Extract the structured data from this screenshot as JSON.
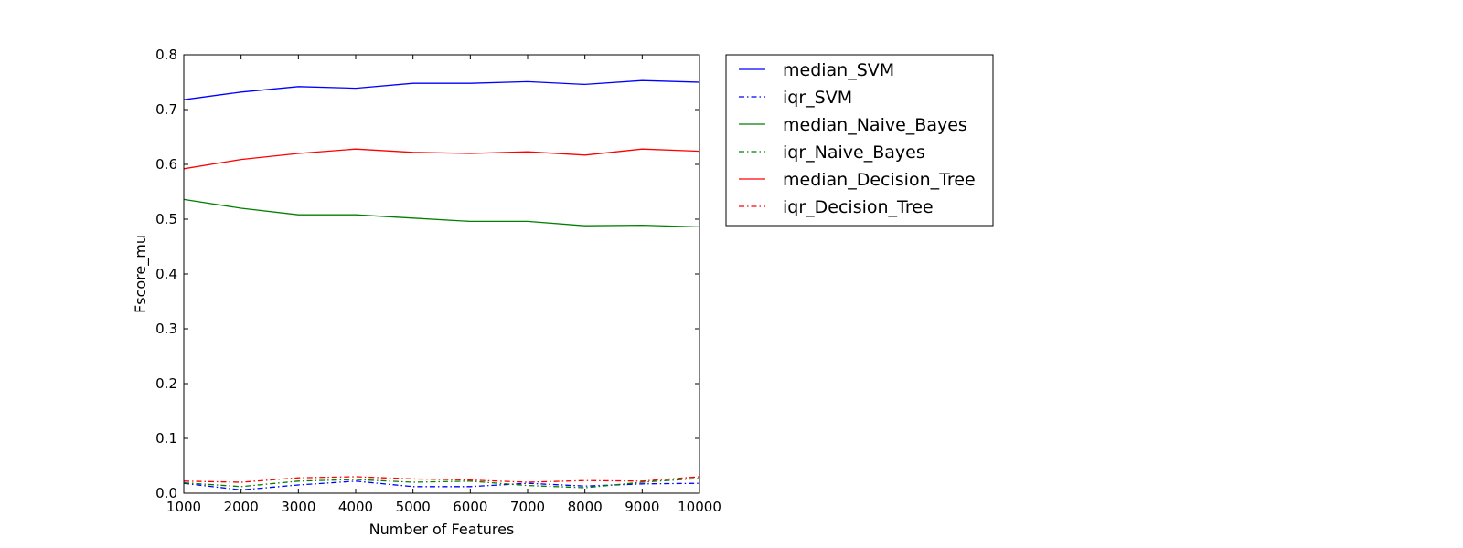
{
  "chart_data": {
    "type": "line",
    "title": "",
    "xlabel": "Number of Features",
    "ylabel": "Fscore_mu",
    "xlim": [
      1000,
      10000
    ],
    "ylim": [
      0.0,
      0.8
    ],
    "x": [
      1000,
      2000,
      3000,
      4000,
      5000,
      6000,
      7000,
      8000,
      9000,
      10000
    ],
    "xticks": [
      "1000",
      "2000",
      "3000",
      "4000",
      "5000",
      "6000",
      "7000",
      "8000",
      "9000",
      "10000"
    ],
    "yticks": [
      "0.0",
      "0.1",
      "0.2",
      "0.3",
      "0.4",
      "0.5",
      "0.6",
      "0.7",
      "0.8"
    ],
    "grid": false,
    "legend_position": "outside-right",
    "series": [
      {
        "name": "median_SVM",
        "color": "#0000ff",
        "style": "solid",
        "values": [
          0.718,
          0.732,
          0.742,
          0.739,
          0.748,
          0.748,
          0.751,
          0.746,
          0.753,
          0.75
        ]
      },
      {
        "name": "iqr_SVM",
        "color": "#0000ff",
        "style": "dashdot",
        "values": [
          0.018,
          0.006,
          0.015,
          0.022,
          0.012,
          0.012,
          0.018,
          0.013,
          0.017,
          0.018
        ]
      },
      {
        "name": "median_Naive_Bayes",
        "color": "#008000",
        "style": "solid",
        "values": [
          0.536,
          0.52,
          0.508,
          0.508,
          0.502,
          0.496,
          0.496,
          0.488,
          0.489,
          0.486
        ]
      },
      {
        "name": "iqr_Naive_Bayes",
        "color": "#008000",
        "style": "dashdot",
        "values": [
          0.019,
          0.012,
          0.022,
          0.025,
          0.02,
          0.022,
          0.014,
          0.01,
          0.02,
          0.027
        ]
      },
      {
        "name": "median_Decision_Tree",
        "color": "#ff0000",
        "style": "solid",
        "values": [
          0.592,
          0.609,
          0.62,
          0.628,
          0.622,
          0.62,
          0.623,
          0.617,
          0.628,
          0.624
        ]
      },
      {
        "name": "iqr_Decision_Tree",
        "color": "#ff0000",
        "style": "dashdot",
        "values": [
          0.022,
          0.02,
          0.028,
          0.03,
          0.026,
          0.024,
          0.02,
          0.023,
          0.022,
          0.03
        ]
      }
    ]
  }
}
